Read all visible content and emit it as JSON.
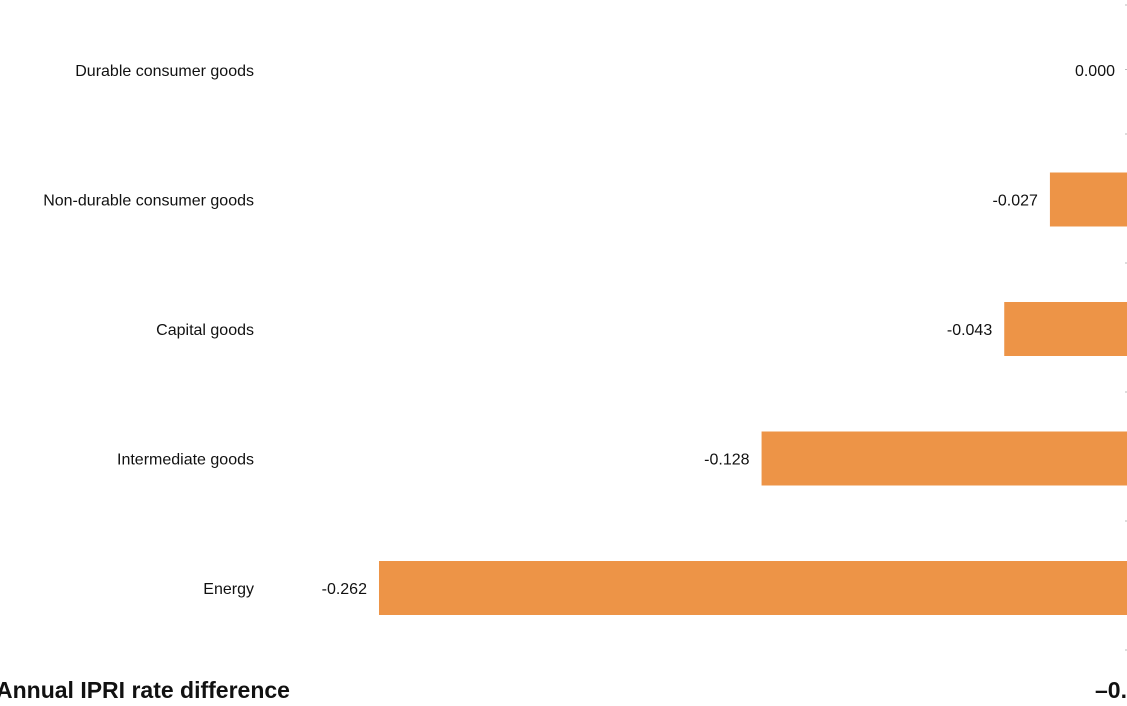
{
  "chart_data": {
    "type": "bar",
    "orientation": "horizontal",
    "categories": [
      "Durable consumer goods",
      "Non-durable consumer goods",
      "Capital goods",
      "Intermediate goods",
      "Energy"
    ],
    "values": [
      0.0,
      -0.027,
      -0.043,
      -0.128,
      -0.262
    ],
    "value_labels": [
      "0.000",
      "-0.027",
      "-0.043",
      "-0.128",
      "-0.262"
    ],
    "xlabel": "Annual IPRI rate difference",
    "x_tick_labels": [
      "–0."
    ],
    "bar_color": "#ED9447",
    "grid": false,
    "legend": "none"
  }
}
